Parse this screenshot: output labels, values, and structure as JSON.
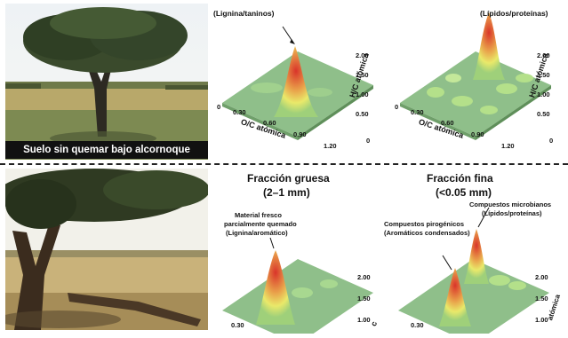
{
  "top": {
    "photo_caption": "Suelo sin quemar bajo alcornoque",
    "plot_left": {
      "peak_label": "(Lignina/taninos)",
      "x_axis_label": "O/C atómica",
      "y_axis_label": "H/C atómica",
      "x_ticks": [
        "0",
        "0.30",
        "0.60",
        "0.90",
        "1.20"
      ],
      "y_ticks": [
        "2.00",
        "1.50",
        "1.00",
        "0.50",
        "0"
      ]
    },
    "plot_right": {
      "peak_label": "(Lípidos/proteínas)",
      "x_axis_label": "O/C atómica",
      "y_axis_label": "H/C atómica",
      "x_ticks": [
        "0",
        "0.30",
        "0.60",
        "0.90",
        "1.20"
      ],
      "y_ticks": [
        "2.00",
        "1.50",
        "1.00",
        "0.50",
        "0"
      ]
    }
  },
  "bottom": {
    "coarse": {
      "title": "Fracción gruesa",
      "subtitle": "(2–1 mm)",
      "annotation_line1": "Material fresco",
      "annotation_line2": "parcialmente quemado",
      "annotation_line3": "(Lignina/aromático)",
      "y_ticks": [
        "2.00",
        "1.50",
        "1.00"
      ],
      "x_tick": "0.30",
      "y_axis_fragment": "c"
    },
    "fine": {
      "title": "Fracción fina",
      "subtitle": "(<0.05 mm)",
      "annotation_a_line1": "Compuestos pirogénicos",
      "annotation_a_line2": "(Aromáticos condensados)",
      "annotation_b_line1": "Compuestos microbianos",
      "annotation_b_line2": "(Lípidos/proteínas)",
      "y_ticks": [
        "2.00",
        "1.50",
        "1.00"
      ],
      "x_tick": "0.30",
      "y_axis_fragment": "atómica"
    }
  },
  "colors": {
    "surface_green": "#8fbf8a",
    "peak_red": "#d9342a",
    "peak_yellow": "#e9e96a"
  }
}
